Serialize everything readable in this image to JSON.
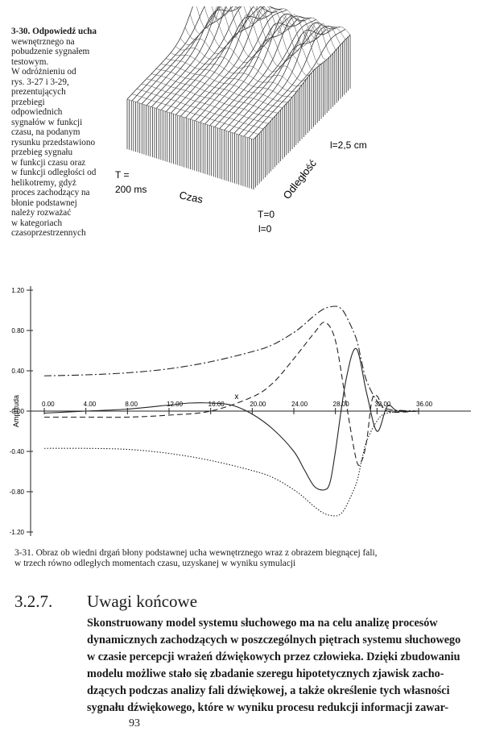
{
  "fig330": {
    "caption": [
      "3-30. Odpowiedź ucha",
      "wewnętrznego na",
      "pobudzenie sygnałem",
      "testowym.",
      "W odróżnieniu od",
      "rys. 3-27 i 3-29,",
      "prezentujących",
      "przebiegi",
      "odpowiednich",
      "sygnałów w funkcji",
      "czasu, na podanym",
      "rysunku przedstawiono",
      "przebieg sygnału",
      "w funkcji czasu oraz",
      "w funkcji odległości od",
      "helikotremy, gdyż",
      "proces zachodzący na",
      "błonie podstawnej",
      "należy rozważać",
      "w kategoriach",
      "czasoprzestrzennych"
    ],
    "label_t": "T =",
    "label_t_val": "200 ms",
    "label_czas": "Czas",
    "label_odleglosc": "Odległość",
    "label_l": "l=2,5 cm",
    "label_t0": "T=0",
    "label_l0": "l=0"
  },
  "chart_data": {
    "type": "line",
    "ylabel": "Amplituda",
    "xlim": [
      0,
      36
    ],
    "ylim": [
      -1.2,
      1.2
    ],
    "yticks": [
      "1.20",
      "0.80",
      "0.40",
      "-0.00",
      "-0.40",
      "-0.80",
      "-1.20"
    ],
    "xticks": [
      "0.00",
      "4.00",
      "8.00",
      "12.00",
      "16.00",
      "20.00",
      "24.00",
      "28.00",
      "32.00",
      "36.00"
    ],
    "annotation": "x",
    "series": [
      {
        "style": "solid",
        "x": [
          0,
          4,
          8,
          12,
          14,
          16,
          18,
          20,
          22,
          24,
          25,
          26,
          27,
          27.5,
          28,
          29,
          30,
          31,
          32,
          33,
          34,
          36
        ],
        "y": [
          -0.02,
          0.0,
          0.02,
          0.06,
          0.08,
          0.08,
          0.06,
          -0.03,
          -0.18,
          -0.4,
          -0.58,
          -0.75,
          -0.78,
          -0.7,
          -0.4,
          0.3,
          0.62,
          0.18,
          -0.2,
          0.05,
          0.0,
          0.0
        ]
      },
      {
        "style": "dashed",
        "x": [
          0,
          4,
          8,
          12,
          16,
          20,
          22,
          24,
          26,
          27,
          28,
          29,
          30,
          30.5,
          31,
          31.5,
          32,
          33,
          36
        ],
        "y": [
          -0.06,
          -0.06,
          -0.06,
          -0.04,
          0.0,
          0.14,
          0.28,
          0.52,
          0.78,
          0.88,
          0.7,
          0.1,
          -0.48,
          -0.5,
          -0.3,
          0.1,
          0.15,
          0.0,
          0.0
        ]
      },
      {
        "style": "envelope-dashdot",
        "x": [
          0,
          4,
          8,
          12,
          16,
          20,
          22,
          24,
          25,
          26,
          27,
          28,
          28.5,
          29,
          30,
          30.5,
          31,
          32,
          33,
          36
        ],
        "y": [
          0.35,
          0.36,
          0.38,
          0.42,
          0.49,
          0.59,
          0.66,
          0.78,
          0.86,
          0.95,
          1.02,
          1.04,
          1.02,
          0.95,
          0.72,
          0.5,
          0.3,
          0.1,
          0.02,
          0.0
        ]
      },
      {
        "style": "envelope-dotted",
        "x": [
          0,
          4,
          8,
          12,
          16,
          20,
          22,
          24,
          25,
          26,
          27,
          28,
          28.5,
          29,
          30,
          30.5,
          31,
          32,
          33,
          36
        ],
        "y": [
          -0.37,
          -0.37,
          -0.38,
          -0.42,
          -0.49,
          -0.59,
          -0.66,
          -0.78,
          -0.86,
          -0.95,
          -1.02,
          -1.04,
          -1.02,
          -0.95,
          -0.72,
          -0.5,
          -0.3,
          -0.1,
          -0.02,
          0.0
        ]
      }
    ]
  },
  "fig331": {
    "caption_line1": "3-31. Obraz ob wiedni drgań błony podstawnej ucha wewnętrznego wraz z obrazem biegnącej fali,",
    "caption_line2": "w trzech równo odległych momentach czasu, uzyskanej w wyniku symulacji"
  },
  "section": {
    "number": "3.2.7.",
    "title": "Uwagi końcowe",
    "lines": [
      "Skonstruowany model systemu słuchowego ma na celu analizę procesów",
      "dynamicznych zachodzących w poszczególnych piętrach systemu słuchowego",
      "w czasie percepcji wrażeń dźwiękowych przez człowieka. Dzięki zbudowaniu",
      "modelu możliwe stało się zbadanie szeregu hipotetycznych zjawisk zacho-",
      "dzących podczas analizy fali dźwiękowej, a także określenie tych własności",
      "sygnału dźwiękowego, które w wyniku procesu redukcji informacji zawar-"
    ]
  },
  "page_number": "93"
}
